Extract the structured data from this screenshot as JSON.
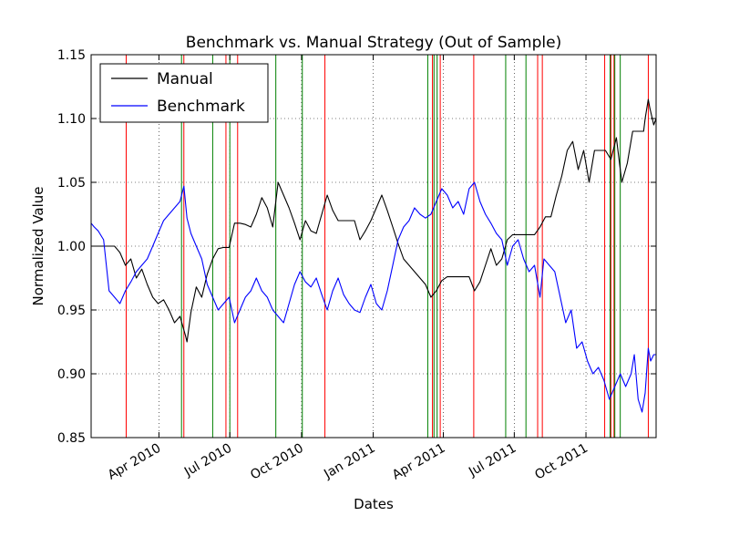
{
  "chart_data": {
    "type": "line",
    "title": "Benchmark vs. Manual Strategy (Out of Sample)",
    "xlabel": "Dates",
    "ylabel": "Normalized Value",
    "xlim": [
      "2010-01-04",
      "2011-12-30"
    ],
    "ylim": [
      0.85,
      1.15
    ],
    "y_ticks": [
      0.85,
      0.9,
      0.95,
      1.0,
      1.05,
      1.1,
      1.15
    ],
    "y_tick_labels": [
      "0.85",
      "0.90",
      "0.95",
      "1.00",
      "1.05",
      "1.10",
      "1.15"
    ],
    "x_ticks": [
      "2010-04-01",
      "2010-07-01",
      "2010-10-01",
      "2011-01-01",
      "2011-04-01",
      "2011-07-01",
      "2011-10-01"
    ],
    "x_tick_labels": [
      "Apr 2010",
      "Jul 2010",
      "Oct 2010",
      "Jan 2011",
      "Apr 2011",
      "Jul 2011",
      "Oct 2011"
    ],
    "grid": true,
    "legend_position": "top-left",
    "series": [
      {
        "name": "Manual",
        "color": "#000000",
        "points": [
          [
            "2010-01-04",
            1.0
          ],
          [
            "2010-01-20",
            1.0
          ],
          [
            "2010-02-03",
            1.0
          ],
          [
            "2010-02-10",
            0.995
          ],
          [
            "2010-02-17",
            0.985
          ],
          [
            "2010-02-24",
            0.99
          ],
          [
            "2010-03-03",
            0.975
          ],
          [
            "2010-03-10",
            0.982
          ],
          [
            "2010-03-17",
            0.97
          ],
          [
            "2010-03-24",
            0.96
          ],
          [
            "2010-03-31",
            0.955
          ],
          [
            "2010-04-07",
            0.958
          ],
          [
            "2010-04-14",
            0.95
          ],
          [
            "2010-04-21",
            0.94
          ],
          [
            "2010-04-28",
            0.945
          ],
          [
            "2010-05-05",
            0.93
          ],
          [
            "2010-05-07",
            0.925
          ],
          [
            "2010-05-12",
            0.948
          ],
          [
            "2010-05-19",
            0.968
          ],
          [
            "2010-05-26",
            0.96
          ],
          [
            "2010-06-02",
            0.978
          ],
          [
            "2010-06-09",
            0.99
          ],
          [
            "2010-06-16",
            0.998
          ],
          [
            "2010-06-23",
            0.999
          ],
          [
            "2010-06-30",
            0.999
          ],
          [
            "2010-07-07",
            1.018
          ],
          [
            "2010-07-14",
            1.018
          ],
          [
            "2010-07-21",
            1.017
          ],
          [
            "2010-07-28",
            1.015
          ],
          [
            "2010-08-04",
            1.025
          ],
          [
            "2010-08-11",
            1.038
          ],
          [
            "2010-08-18",
            1.03
          ],
          [
            "2010-08-25",
            1.015
          ],
          [
            "2010-09-01",
            1.05
          ],
          [
            "2010-09-08",
            1.04
          ],
          [
            "2010-09-15",
            1.03
          ],
          [
            "2010-09-22",
            1.018
          ],
          [
            "2010-09-29",
            1.005
          ],
          [
            "2010-10-06",
            1.02
          ],
          [
            "2010-10-13",
            1.012
          ],
          [
            "2010-10-20",
            1.01
          ],
          [
            "2010-10-27",
            1.025
          ],
          [
            "2010-11-03",
            1.04
          ],
          [
            "2010-11-10",
            1.028
          ],
          [
            "2010-11-17",
            1.02
          ],
          [
            "2010-11-24",
            1.02
          ],
          [
            "2010-12-08",
            1.02
          ],
          [
            "2010-12-15",
            1.005
          ],
          [
            "2010-12-22",
            1.012
          ],
          [
            "2010-12-29",
            1.02
          ],
          [
            "2011-01-05",
            1.03
          ],
          [
            "2011-01-12",
            1.04
          ],
          [
            "2011-01-19",
            1.028
          ],
          [
            "2011-01-26",
            1.015
          ],
          [
            "2011-02-02",
            1.002
          ],
          [
            "2011-02-09",
            0.99
          ],
          [
            "2011-02-16",
            0.985
          ],
          [
            "2011-02-23",
            0.98
          ],
          [
            "2011-03-02",
            0.975
          ],
          [
            "2011-03-09",
            0.97
          ],
          [
            "2011-03-16",
            0.96
          ],
          [
            "2011-03-23",
            0.965
          ],
          [
            "2011-03-30",
            0.973
          ],
          [
            "2011-04-06",
            0.976
          ],
          [
            "2011-04-20",
            0.976
          ],
          [
            "2011-05-04",
            0.976
          ],
          [
            "2011-05-11",
            0.965
          ],
          [
            "2011-05-18",
            0.972
          ],
          [
            "2011-05-25",
            0.985
          ],
          [
            "2011-06-01",
            0.998
          ],
          [
            "2011-06-08",
            0.985
          ],
          [
            "2011-06-15",
            0.99
          ],
          [
            "2011-06-22",
            1.005
          ],
          [
            "2011-06-29",
            1.009
          ],
          [
            "2011-07-13",
            1.009
          ],
          [
            "2011-07-27",
            1.009
          ],
          [
            "2011-08-03",
            1.015
          ],
          [
            "2011-08-10",
            1.023
          ],
          [
            "2011-08-17",
            1.023
          ],
          [
            "2011-08-24",
            1.04
          ],
          [
            "2011-08-31",
            1.055
          ],
          [
            "2011-09-07",
            1.075
          ],
          [
            "2011-09-14",
            1.082
          ],
          [
            "2011-09-21",
            1.06
          ],
          [
            "2011-09-28",
            1.075
          ],
          [
            "2011-10-05",
            1.05
          ],
          [
            "2011-10-12",
            1.075
          ],
          [
            "2011-10-26",
            1.075
          ],
          [
            "2011-11-02",
            1.068
          ],
          [
            "2011-11-09",
            1.085
          ],
          [
            "2011-11-16",
            1.05
          ],
          [
            "2011-11-23",
            1.065
          ],
          [
            "2011-11-30",
            1.09
          ],
          [
            "2011-12-07",
            1.09
          ],
          [
            "2011-12-14",
            1.09
          ],
          [
            "2011-12-16",
            1.1
          ],
          [
            "2011-12-20",
            1.115
          ],
          [
            "2011-12-22",
            1.108
          ],
          [
            "2011-12-27",
            1.095
          ],
          [
            "2011-12-30",
            1.1
          ]
        ]
      },
      {
        "name": "Benchmark",
        "color": "#0000ff",
        "points": [
          [
            "2010-01-04",
            1.018
          ],
          [
            "2010-01-08",
            1.015
          ],
          [
            "2010-01-13",
            1.012
          ],
          [
            "2010-01-20",
            1.005
          ],
          [
            "2010-01-27",
            0.965
          ],
          [
            "2010-02-03",
            0.96
          ],
          [
            "2010-02-10",
            0.955
          ],
          [
            "2010-02-17",
            0.965
          ],
          [
            "2010-02-24",
            0.972
          ],
          [
            "2010-03-03",
            0.98
          ],
          [
            "2010-03-10",
            0.985
          ],
          [
            "2010-03-17",
            0.99
          ],
          [
            "2010-03-24",
            1.0
          ],
          [
            "2010-03-31",
            1.01
          ],
          [
            "2010-04-07",
            1.02
          ],
          [
            "2010-04-14",
            1.025
          ],
          [
            "2010-04-21",
            1.03
          ],
          [
            "2010-04-28",
            1.035
          ],
          [
            "2010-05-03",
            1.047
          ],
          [
            "2010-05-07",
            1.022
          ],
          [
            "2010-05-12",
            1.01
          ],
          [
            "2010-05-19",
            1.0
          ],
          [
            "2010-05-26",
            0.99
          ],
          [
            "2010-06-02",
            0.97
          ],
          [
            "2010-06-09",
            0.96
          ],
          [
            "2010-06-16",
            0.95
          ],
          [
            "2010-06-23",
            0.955
          ],
          [
            "2010-06-30",
            0.96
          ],
          [
            "2010-07-07",
            0.94
          ],
          [
            "2010-07-14",
            0.95
          ],
          [
            "2010-07-21",
            0.96
          ],
          [
            "2010-07-28",
            0.965
          ],
          [
            "2010-08-04",
            0.975
          ],
          [
            "2010-08-11",
            0.965
          ],
          [
            "2010-08-18",
            0.96
          ],
          [
            "2010-08-25",
            0.95
          ],
          [
            "2010-09-01",
            0.945
          ],
          [
            "2010-09-08",
            0.94
          ],
          [
            "2010-09-15",
            0.955
          ],
          [
            "2010-09-22",
            0.97
          ],
          [
            "2010-09-29",
            0.98
          ],
          [
            "2010-10-06",
            0.972
          ],
          [
            "2010-10-13",
            0.968
          ],
          [
            "2010-10-20",
            0.975
          ],
          [
            "2010-10-27",
            0.962
          ],
          [
            "2010-11-03",
            0.95
          ],
          [
            "2010-11-10",
            0.965
          ],
          [
            "2010-11-17",
            0.975
          ],
          [
            "2010-11-24",
            0.962
          ],
          [
            "2010-12-01",
            0.955
          ],
          [
            "2010-12-08",
            0.95
          ],
          [
            "2010-12-15",
            0.948
          ],
          [
            "2010-12-22",
            0.96
          ],
          [
            "2010-12-29",
            0.97
          ],
          [
            "2011-01-05",
            0.955
          ],
          [
            "2011-01-12",
            0.95
          ],
          [
            "2011-01-19",
            0.965
          ],
          [
            "2011-01-26",
            0.985
          ],
          [
            "2011-02-02",
            1.005
          ],
          [
            "2011-02-09",
            1.015
          ],
          [
            "2011-02-16",
            1.02
          ],
          [
            "2011-02-23",
            1.03
          ],
          [
            "2011-03-02",
            1.025
          ],
          [
            "2011-03-09",
            1.022
          ],
          [
            "2011-03-16",
            1.025
          ],
          [
            "2011-03-23",
            1.035
          ],
          [
            "2011-03-30",
            1.045
          ],
          [
            "2011-04-06",
            1.04
          ],
          [
            "2011-04-13",
            1.03
          ],
          [
            "2011-04-20",
            1.035
          ],
          [
            "2011-04-27",
            1.025
          ],
          [
            "2011-05-04",
            1.045
          ],
          [
            "2011-05-11",
            1.05
          ],
          [
            "2011-05-18",
            1.035
          ],
          [
            "2011-05-25",
            1.025
          ],
          [
            "2011-06-01",
            1.018
          ],
          [
            "2011-06-08",
            1.01
          ],
          [
            "2011-06-15",
            1.005
          ],
          [
            "2011-06-22",
            0.985
          ],
          [
            "2011-06-29",
            1.0
          ],
          [
            "2011-07-06",
            1.005
          ],
          [
            "2011-07-13",
            0.99
          ],
          [
            "2011-07-20",
            0.98
          ],
          [
            "2011-07-27",
            0.985
          ],
          [
            "2011-08-03",
            0.96
          ],
          [
            "2011-08-08",
            0.99
          ],
          [
            "2011-08-15",
            0.985
          ],
          [
            "2011-08-22",
            0.98
          ],
          [
            "2011-08-29",
            0.96
          ],
          [
            "2011-09-05",
            0.94
          ],
          [
            "2011-09-12",
            0.95
          ],
          [
            "2011-09-19",
            0.92
          ],
          [
            "2011-09-26",
            0.925
          ],
          [
            "2011-10-03",
            0.91
          ],
          [
            "2011-10-10",
            0.9
          ],
          [
            "2011-10-17",
            0.905
          ],
          [
            "2011-10-24",
            0.895
          ],
          [
            "2011-10-31",
            0.88
          ],
          [
            "2011-11-07",
            0.89
          ],
          [
            "2011-11-14",
            0.9
          ],
          [
            "2011-11-21",
            0.89
          ],
          [
            "2011-11-28",
            0.9
          ],
          [
            "2011-12-02",
            0.915
          ],
          [
            "2011-12-07",
            0.88
          ],
          [
            "2011-12-12",
            0.87
          ],
          [
            "2011-12-16",
            0.885
          ],
          [
            "2011-12-20",
            0.92
          ],
          [
            "2011-12-23",
            0.91
          ],
          [
            "2011-12-27",
            0.915
          ],
          [
            "2011-12-30",
            0.915
          ]
        ]
      }
    ],
    "vertical_lines": {
      "red": {
        "color": "#ff0000",
        "dates": [
          "2010-02-18",
          "2010-05-03",
          "2010-06-26",
          "2010-07-11",
          "2010-10-31",
          "2011-03-18",
          "2011-03-28",
          "2011-05-10",
          "2011-07-31",
          "2011-08-06",
          "2011-10-25",
          "2011-11-02",
          "2011-11-06",
          "2011-12-20"
        ]
      },
      "green": {
        "color": "#008000",
        "dates": [
          "2010-04-30",
          "2010-06-09",
          "2010-07-01",
          "2010-08-29",
          "2010-10-02",
          "2011-03-12",
          "2011-03-20",
          "2011-03-24",
          "2011-06-20",
          "2011-07-16",
          "2011-11-01",
          "2011-11-07",
          "2011-11-14"
        ]
      }
    }
  }
}
